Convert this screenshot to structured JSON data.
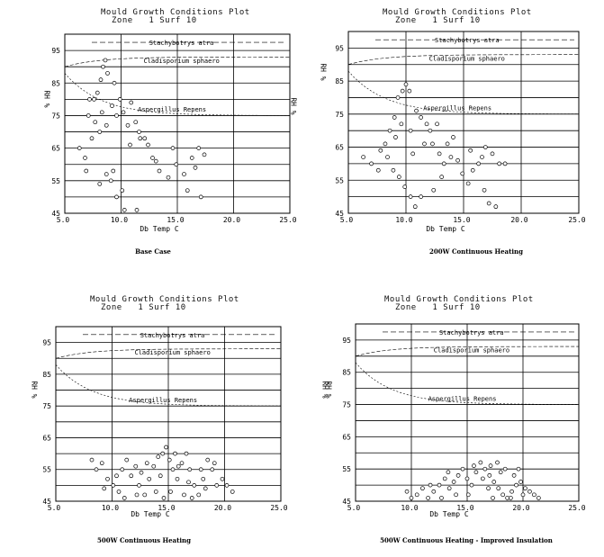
{
  "chart_data": [
    {
      "type": "scatter",
      "title": "Mould Growth Conditions Plot",
      "subtitle": "Zone   1 Surf 10",
      "xlabel": "Db Temp C",
      "ylabel": "RH %",
      "caption": "Base Case",
      "xlim": [
        5,
        25
      ],
      "ylim": [
        45,
        100
      ],
      "xticks": [
        "5.0",
        "10.0",
        "15.0",
        "20.0",
        "25.0"
      ],
      "yticks": [
        "95",
        "85",
        "75",
        "65",
        "55",
        "45"
      ],
      "grid": true,
      "curve_labels": [
        "Stachybotrys atra",
        "Cladisporium sphaero",
        "Aspergillus Repens"
      ],
      "points": [
        [
          6.3,
          65
        ],
        [
          6.8,
          62
        ],
        [
          7.1,
          75
        ],
        [
          7.2,
          80
        ],
        [
          7.6,
          80
        ],
        [
          7.9,
          82
        ],
        [
          8.2,
          86
        ],
        [
          8.4,
          90
        ],
        [
          8.6,
          92
        ],
        [
          8.8,
          88
        ],
        [
          7.7,
          73
        ],
        [
          8.1,
          70
        ],
        [
          8.3,
          76
        ],
        [
          8.7,
          72
        ],
        [
          9.2,
          78
        ],
        [
          9.6,
          75
        ],
        [
          9.9,
          80
        ],
        [
          10.2,
          76
        ],
        [
          10.6,
          72
        ],
        [
          10.9,
          79
        ],
        [
          11.3,
          73
        ],
        [
          11.6,
          70
        ],
        [
          12.1,
          68
        ],
        [
          12.4,
          66
        ],
        [
          9.4,
          85
        ],
        [
          8.7,
          57
        ],
        [
          9.1,
          55
        ],
        [
          9.6,
          50
        ],
        [
          10.1,
          52
        ],
        [
          10.3,
          46
        ],
        [
          11.4,
          46
        ],
        [
          12.8,
          62
        ],
        [
          13.4,
          58
        ],
        [
          14.2,
          56
        ],
        [
          14.9,
          60
        ],
        [
          15.6,
          57
        ],
        [
          15.9,
          52
        ],
        [
          16.3,
          62
        ],
        [
          16.6,
          59
        ],
        [
          16.9,
          65
        ],
        [
          17.4,
          63
        ],
        [
          17.1,
          50
        ],
        [
          11.7,
          68
        ],
        [
          10.8,
          66
        ],
        [
          7.4,
          68
        ],
        [
          6.9,
          58
        ],
        [
          8.1,
          54
        ],
        [
          9.3,
          58
        ],
        [
          14.6,
          65
        ],
        [
          13.1,
          61
        ]
      ]
    },
    {
      "type": "scatter",
      "title": "Mould Growth Conditions Plot",
      "subtitle": "Zone   1 Surf 10",
      "xlabel": "Db Temp C",
      "ylabel": "RH %",
      "caption": "200W Continuous Heating",
      "xlim": [
        5,
        25
      ],
      "ylim": [
        45,
        100
      ],
      "xticks": [
        "5.0",
        "10.0",
        "15.0",
        "20.0",
        "25.0"
      ],
      "yticks": [
        "95",
        "85",
        "75",
        "65",
        "55",
        "45"
      ],
      "grid": true,
      "curve_labels": [
        "Stachybotrys atra",
        "Cladisporium sphaero",
        "Aspergillus Repens"
      ],
      "points": [
        [
          6.3,
          62
        ],
        [
          7.0,
          60
        ],
        [
          7.6,
          58
        ],
        [
          8.2,
          66
        ],
        [
          8.6,
          70
        ],
        [
          9.0,
          74
        ],
        [
          9.3,
          80
        ],
        [
          9.7,
          82
        ],
        [
          10.0,
          84
        ],
        [
          10.3,
          82
        ],
        [
          9.1,
          68
        ],
        [
          9.6,
          72
        ],
        [
          10.4,
          70
        ],
        [
          10.9,
          76
        ],
        [
          11.3,
          74
        ],
        [
          11.8,
          72
        ],
        [
          12.3,
          66
        ],
        [
          12.9,
          63
        ],
        [
          13.3,
          60
        ],
        [
          13.9,
          62
        ],
        [
          14.5,
          61
        ],
        [
          14.9,
          57
        ],
        [
          15.4,
          54
        ],
        [
          15.8,
          58
        ],
        [
          16.3,
          60
        ],
        [
          16.6,
          62
        ],
        [
          16.9,
          65
        ],
        [
          17.5,
          63
        ],
        [
          18.1,
          60
        ],
        [
          18.6,
          60
        ],
        [
          8.4,
          62
        ],
        [
          8.9,
          58
        ],
        [
          9.4,
          56
        ],
        [
          9.9,
          53
        ],
        [
          10.4,
          50
        ],
        [
          10.8,
          47
        ],
        [
          11.3,
          50
        ],
        [
          12.4,
          52
        ],
        [
          13.1,
          56
        ],
        [
          13.6,
          66
        ],
        [
          12.1,
          70
        ],
        [
          11.6,
          66
        ],
        [
          10.6,
          63
        ],
        [
          16.8,
          52
        ],
        [
          17.2,
          48
        ],
        [
          17.8,
          47
        ],
        [
          7.8,
          64
        ],
        [
          15.6,
          64
        ],
        [
          14.1,
          68
        ],
        [
          12.7,
          72
        ]
      ]
    },
    {
      "type": "scatter",
      "title": "Mould Growth Conditions Plot",
      "subtitle": "Zone   1 Surf 10",
      "xlabel": "Db Temp C",
      "ylabel": "RH %",
      "caption": "500W Continuous Heating",
      "xlim": [
        5,
        25
      ],
      "ylim": [
        45,
        100
      ],
      "xticks": [
        "5.0",
        "10.0",
        "15.0",
        "20.0",
        "25.0"
      ],
      "yticks": [
        "95",
        "85",
        "75",
        "65",
        "55",
        "45"
      ],
      "grid": true,
      "curve_labels": [
        "Stachybotrys atra",
        "Cladisporium sphaero",
        "Aspergillus Repens"
      ],
      "points": [
        [
          8.2,
          58
        ],
        [
          8.6,
          55
        ],
        [
          9.1,
          57
        ],
        [
          9.6,
          52
        ],
        [
          10.1,
          50
        ],
        [
          10.6,
          48
        ],
        [
          10.9,
          55
        ],
        [
          11.3,
          58
        ],
        [
          11.7,
          53
        ],
        [
          12.1,
          56
        ],
        [
          12.4,
          50
        ],
        [
          12.9,
          47
        ],
        [
          13.3,
          52
        ],
        [
          13.7,
          56
        ],
        [
          14.1,
          59
        ],
        [
          14.5,
          60
        ],
        [
          14.8,
          62
        ],
        [
          15.1,
          58
        ],
        [
          15.4,
          55
        ],
        [
          15.8,
          52
        ],
        [
          16.2,
          57
        ],
        [
          16.6,
          60
        ],
        [
          16.9,
          55
        ],
        [
          17.3,
          50
        ],
        [
          17.7,
          47
        ],
        [
          18.1,
          52
        ],
        [
          18.5,
          58
        ],
        [
          18.9,
          55
        ],
        [
          19.3,
          50
        ],
        [
          19.8,
          52
        ],
        [
          20.2,
          50
        ],
        [
          20.7,
          48
        ],
        [
          15.2,
          48
        ],
        [
          14.6,
          46
        ],
        [
          13.9,
          48
        ],
        [
          12.6,
          54
        ],
        [
          11.1,
          46
        ],
        [
          9.3,
          49
        ],
        [
          10.4,
          53
        ],
        [
          16.4,
          47
        ],
        [
          17.9,
          55
        ],
        [
          18.3,
          49
        ],
        [
          19.1,
          57
        ],
        [
          15.6,
          60
        ],
        [
          14.3,
          53
        ],
        [
          13.1,
          57
        ],
        [
          12.2,
          47
        ],
        [
          16.8,
          51
        ],
        [
          17.1,
          46
        ],
        [
          15.9,
          56
        ]
      ]
    },
    {
      "type": "scatter",
      "title": "Mould Growth Conditions Plot",
      "subtitle": "Zone   1 Surf 10",
      "xlabel": "Db Temp C",
      "ylabel": "RH %",
      "caption": "500W Continuous Heating - Improved Insulation",
      "xlim": [
        5,
        25
      ],
      "ylim": [
        45,
        100
      ],
      "xticks": [
        "5.0",
        "10.0",
        "15.0",
        "20.0",
        "25.0"
      ],
      "yticks": [
        "95",
        "85",
        "75",
        "65",
        "55",
        "45"
      ],
      "grid": true,
      "curve_labels": [
        "Stachybotrys atra",
        "Cladisporium sphaero",
        "Aspergillus Repens"
      ],
      "points": [
        [
          9.6,
          48
        ],
        [
          10.0,
          46
        ],
        [
          10.5,
          47
        ],
        [
          11.0,
          49
        ],
        [
          11.5,
          46
        ],
        [
          12.0,
          48
        ],
        [
          12.5,
          50
        ],
        [
          13.0,
          52
        ],
        [
          13.4,
          49
        ],
        [
          13.8,
          51
        ],
        [
          14.2,
          53
        ],
        [
          14.6,
          55
        ],
        [
          15.0,
          52
        ],
        [
          15.4,
          50
        ],
        [
          15.8,
          54
        ],
        [
          16.2,
          57
        ],
        [
          16.6,
          55
        ],
        [
          17.0,
          53
        ],
        [
          17.4,
          51
        ],
        [
          17.8,
          49
        ],
        [
          18.2,
          47
        ],
        [
          18.6,
          46
        ],
        [
          19.0,
          48
        ],
        [
          19.4,
          50
        ],
        [
          19.8,
          51
        ],
        [
          20.2,
          49
        ],
        [
          20.6,
          48
        ],
        [
          21.0,
          47
        ],
        [
          21.4,
          46
        ],
        [
          16.4,
          52
        ],
        [
          17.1,
          56
        ],
        [
          17.7,
          57
        ],
        [
          18.4,
          55
        ],
        [
          19.2,
          53
        ],
        [
          15.1,
          47
        ],
        [
          14.0,
          47
        ],
        [
          12.7,
          46
        ],
        [
          11.7,
          50
        ],
        [
          13.3,
          54
        ],
        [
          16.9,
          49
        ],
        [
          18.9,
          46
        ],
        [
          20.0,
          47
        ],
        [
          15.6,
          56
        ],
        [
          17.3,
          46
        ],
        [
          18.0,
          54
        ],
        [
          19.6,
          55
        ]
      ]
    }
  ]
}
